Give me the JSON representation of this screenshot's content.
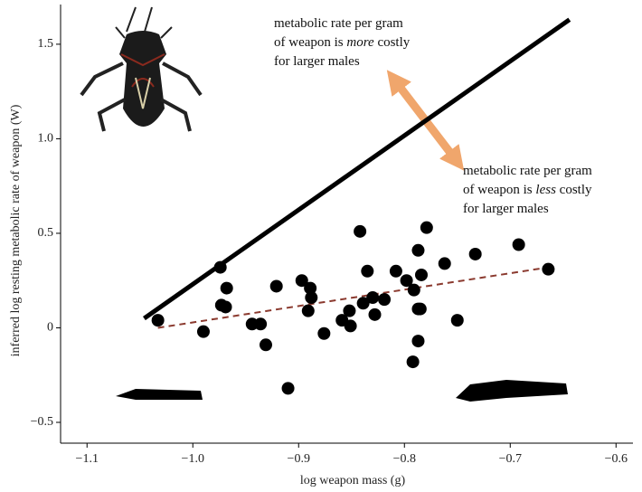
{
  "chart_data": {
    "type": "scatter",
    "xlabel": "log weapon mass (g)",
    "ylabel": "inferred log resting metabolic rate of weapon (W)",
    "xlim": [
      -1.125,
      -0.584
    ],
    "ylim": [
      -0.61,
      1.71
    ],
    "xticks": [
      {
        "value": -1.1,
        "label": "−1.1"
      },
      {
        "value": -1.0,
        "label": "−1.0"
      },
      {
        "value": -0.9,
        "label": "−0.9"
      },
      {
        "value": -0.8,
        "label": "−0.8"
      },
      {
        "value": -0.7,
        "label": "−0.7"
      },
      {
        "value": -0.6,
        "label": "−0.6"
      }
    ],
    "yticks": [
      {
        "value": -0.5,
        "label": "−0.5"
      },
      0,
      0.5,
      {
        "value": 1.0,
        "label": "1.0"
      },
      1.5
    ],
    "color": "#000000",
    "x": [
      -1.033,
      -0.99,
      -0.974,
      -0.968,
      -0.973,
      -0.969,
      -0.944,
      -0.936,
      -0.931,
      -0.921,
      -0.91,
      -0.897,
      -0.889,
      -0.888,
      -0.891,
      -0.876,
      -0.859,
      -0.852,
      -0.851,
      -0.842,
      -0.839,
      -0.835,
      -0.83,
      -0.828,
      -0.819,
      -0.808,
      -0.798,
      -0.791,
      -0.792,
      -0.787,
      -0.787,
      -0.787,
      -0.784,
      -0.785,
      -0.779,
      -0.762,
      -0.75,
      -0.733,
      -0.692,
      -0.664
    ],
    "y": [
      0.04,
      -0.02,
      0.32,
      0.21,
      0.12,
      0.11,
      0.02,
      0.02,
      -0.09,
      0.22,
      -0.32,
      0.25,
      0.21,
      0.16,
      0.09,
      -0.03,
      0.04,
      0.09,
      0.01,
      0.51,
      0.13,
      0.3,
      0.16,
      0.07,
      0.15,
      0.3,
      0.25,
      0.2,
      -0.18,
      0.1,
      -0.07,
      0.41,
      0.28,
      0.1,
      0.53,
      0.34,
      0.04,
      0.39,
      0.44,
      0.31
    ],
    "lines": [
      {
        "x": [
          -1.046,
          -0.644
        ],
        "y": [
          0.05,
          1.63
        ],
        "color": "#000000",
        "dashed": false
      },
      {
        "x": [
          -1.033,
          -0.664
        ],
        "y": [
          0.0,
          0.32
        ],
        "color": "#8b3a2f",
        "dashed": true
      }
    ],
    "annotations": [
      {
        "lines": [
          [
            "metabolic rate per gram"
          ],
          [
            "of weapon is ",
            "more",
            " costly"
          ],
          [
            "for larger males"
          ]
        ]
      },
      {
        "lines": [
          [
            "metabolic rate per gram"
          ],
          [
            "of weapon is ",
            "less",
            " costly"
          ],
          [
            "for larger males"
          ]
        ]
      }
    ]
  }
}
